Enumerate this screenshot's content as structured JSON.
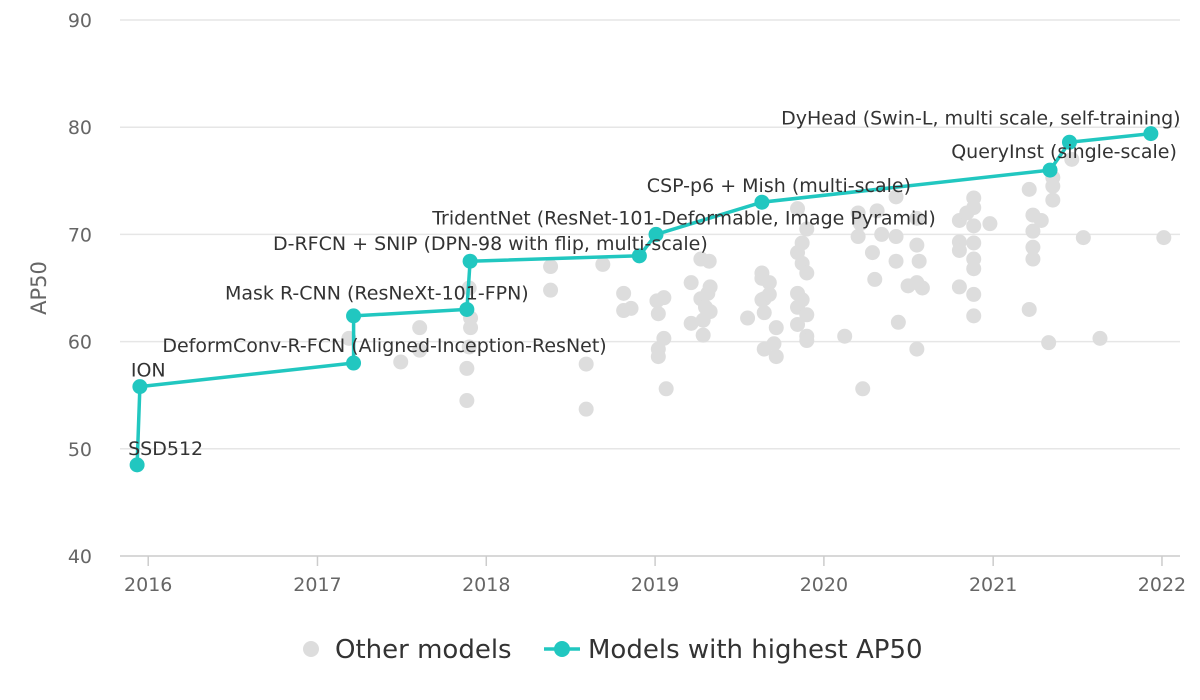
{
  "chart_data": {
    "type": "scatter",
    "title": "",
    "xlabel": "",
    "ylabel": "AP50",
    "xlim": [
      "2015-11-01",
      "2022-02-09"
    ],
    "ylim": [
      40,
      90
    ],
    "y_ticks": [
      40,
      50,
      60,
      70,
      80,
      90
    ],
    "x_ticks": [
      {
        "date": "2016-01-01",
        "label": "2016"
      },
      {
        "date": "2017-01-01",
        "label": "2017"
      },
      {
        "date": "2018-01-01",
        "label": "2018"
      },
      {
        "date": "2019-01-01",
        "label": "2019"
      },
      {
        "date": "2020-01-01",
        "label": "2020"
      },
      {
        "date": "2021-01-01",
        "label": "2021"
      },
      {
        "date": "2022-01-01",
        "label": "2022"
      }
    ],
    "grid": true,
    "legend_position": "bottom",
    "colors": {
      "other": "#dddddd",
      "best": "#21c7c0",
      "grid": "#e6e6e6",
      "text": "#333333",
      "tick": "#666666"
    },
    "series": [
      {
        "name": "Other models",
        "points": [
          [
            "2017-03-10",
            60.3
          ],
          [
            "2017-06-30",
            58.1
          ],
          [
            "2017-08-10",
            61.3
          ],
          [
            "2017-08-10",
            59.2
          ],
          [
            "2017-11-20",
            57.5
          ],
          [
            "2017-11-20",
            54.5
          ],
          [
            "2017-11-25",
            59.5
          ],
          [
            "2017-11-25",
            65.0
          ],
          [
            "2017-11-28",
            61.3
          ],
          [
            "2017-11-28",
            62.2
          ],
          [
            "2018-05-20",
            67.0
          ],
          [
            "2018-05-20",
            64.8
          ],
          [
            "2018-08-05",
            57.9
          ],
          [
            "2018-08-05",
            53.7
          ],
          [
            "2018-09-10",
            67.2
          ],
          [
            "2018-10-25",
            64.5
          ],
          [
            "2018-10-25",
            62.9
          ],
          [
            "2018-11-10",
            63.1
          ],
          [
            "2019-01-05",
            63.8
          ],
          [
            "2019-01-08",
            59.3
          ],
          [
            "2019-01-08",
            58.6
          ],
          [
            "2019-01-08",
            62.6
          ],
          [
            "2019-01-20",
            64.1
          ],
          [
            "2019-01-20",
            60.3
          ],
          [
            "2019-01-25",
            55.6
          ],
          [
            "2019-03-20",
            65.5
          ],
          [
            "2019-03-20",
            61.7
          ],
          [
            "2019-04-10",
            67.7
          ],
          [
            "2019-04-10",
            64.0
          ],
          [
            "2019-04-15",
            62.0
          ],
          [
            "2019-04-15",
            60.6
          ],
          [
            "2019-04-20",
            63.2
          ],
          [
            "2019-04-25",
            64.5
          ],
          [
            "2019-04-28",
            67.5
          ],
          [
            "2019-04-30",
            65.1
          ],
          [
            "2019-04-30",
            62.8
          ],
          [
            "2019-07-20",
            62.2
          ],
          [
            "2019-08-20",
            66.4
          ],
          [
            "2019-08-20",
            65.9
          ],
          [
            "2019-08-20",
            63.9
          ],
          [
            "2019-08-25",
            64.0
          ],
          [
            "2019-08-25",
            62.7
          ],
          [
            "2019-08-25",
            59.3
          ],
          [
            "2019-09-05",
            65.5
          ],
          [
            "2019-09-05",
            64.4
          ],
          [
            "2019-09-15",
            59.8
          ],
          [
            "2019-09-20",
            61.3
          ],
          [
            "2019-09-20",
            58.6
          ],
          [
            "2019-11-05",
            72.4
          ],
          [
            "2019-11-05",
            68.3
          ],
          [
            "2019-11-05",
            64.5
          ],
          [
            "2019-11-05",
            63.2
          ],
          [
            "2019-11-05",
            61.6
          ],
          [
            "2019-11-15",
            69.2
          ],
          [
            "2019-11-15",
            67.3
          ],
          [
            "2019-11-15",
            63.9
          ],
          [
            "2019-11-25",
            70.5
          ],
          [
            "2019-11-25",
            66.4
          ],
          [
            "2019-11-25",
            62.5
          ],
          [
            "2019-11-25",
            60.5
          ],
          [
            "2019-11-25",
            60.1
          ],
          [
            "2020-02-15",
            60.5
          ],
          [
            "2020-03-15",
            72.0
          ],
          [
            "2020-03-15",
            69.8
          ],
          [
            "2020-03-20",
            71.0
          ],
          [
            "2020-03-25",
            55.6
          ],
          [
            "2020-04-15",
            68.3
          ],
          [
            "2020-04-20",
            65.8
          ],
          [
            "2020-04-25",
            72.2
          ],
          [
            "2020-05-05",
            70.0
          ],
          [
            "2020-06-05",
            73.5
          ],
          [
            "2020-06-05",
            69.8
          ],
          [
            "2020-06-05",
            67.5
          ],
          [
            "2020-06-10",
            61.8
          ],
          [
            "2020-07-01",
            65.2
          ],
          [
            "2020-07-20",
            71.5
          ],
          [
            "2020-07-20",
            69.0
          ],
          [
            "2020-07-20",
            65.5
          ],
          [
            "2020-07-20",
            59.3
          ],
          [
            "2020-07-25",
            67.5
          ],
          [
            "2020-08-01",
            65.0
          ],
          [
            "2020-10-20",
            71.3
          ],
          [
            "2020-10-20",
            69.3
          ],
          [
            "2020-10-20",
            68.5
          ],
          [
            "2020-10-20",
            65.1
          ],
          [
            "2020-11-05",
            72.0
          ],
          [
            "2020-11-20",
            73.4
          ],
          [
            "2020-11-20",
            72.5
          ],
          [
            "2020-11-20",
            70.8
          ],
          [
            "2020-11-20",
            69.2
          ],
          [
            "2020-11-20",
            67.7
          ],
          [
            "2020-11-20",
            66.8
          ],
          [
            "2020-11-20",
            64.4
          ],
          [
            "2020-11-20",
            62.4
          ],
          [
            "2020-12-25",
            71.0
          ],
          [
            "2021-03-20",
            74.2
          ],
          [
            "2021-03-20",
            63.0
          ],
          [
            "2021-03-28",
            71.8
          ],
          [
            "2021-03-28",
            70.3
          ],
          [
            "2021-03-28",
            68.8
          ],
          [
            "2021-03-28",
            67.7
          ],
          [
            "2021-04-15",
            71.3
          ],
          [
            "2021-05-01",
            59.9
          ],
          [
            "2021-05-10",
            75.3
          ],
          [
            "2021-05-10",
            74.5
          ],
          [
            "2021-05-10",
            73.2
          ],
          [
            "2021-06-20",
            77.0
          ],
          [
            "2021-07-15",
            69.7
          ],
          [
            "2021-08-20",
            60.3
          ],
          [
            "2022-01-05",
            69.7
          ]
        ]
      },
      {
        "name": "Models with highest AP50",
        "points": [
          [
            "2015-12-08",
            48.5
          ],
          [
            "2015-12-14",
            55.8
          ],
          [
            "2017-03-20",
            58.0
          ],
          [
            "2017-03-20",
            62.4
          ],
          [
            "2017-11-20",
            63.0
          ],
          [
            "2017-11-27",
            67.5
          ],
          [
            "2018-11-28",
            68.0
          ],
          [
            "2019-01-03",
            70.0
          ],
          [
            "2019-08-20",
            73.0
          ],
          [
            "2021-05-04",
            76.0
          ],
          [
            "2021-06-15",
            78.6
          ],
          [
            "2021-12-08",
            79.4
          ]
        ]
      }
    ],
    "annotations": [
      {
        "text": "SSD512",
        "point": 0
      },
      {
        "text": "ION",
        "point": 1
      },
      {
        "text": "DeformConv-R-FCN (Aligned-Inception-ResNet)",
        "point": 2
      },
      {
        "text": "Mask R-CNN (ResNeXt-101-FPN)",
        "point": 4
      },
      {
        "text": "D-RFCN + SNIP (DPN-98 with flip, multi-scale)",
        "point": 6
      },
      {
        "text": "TridentNet (ResNet-101-Deformable, Image Pyramid)",
        "point": 7
      },
      {
        "text": "CSP-p6 + Mish (multi-scale)",
        "point": 8
      },
      {
        "text": "QueryInst (single-scale)",
        "point": 9
      },
      {
        "text": "DyHead (Swin-L, multi scale, self-training)",
        "point": 11
      }
    ],
    "legend": [
      {
        "label": "Other models",
        "series": 0
      },
      {
        "label": "Models with highest AP50",
        "series": 1
      }
    ]
  }
}
